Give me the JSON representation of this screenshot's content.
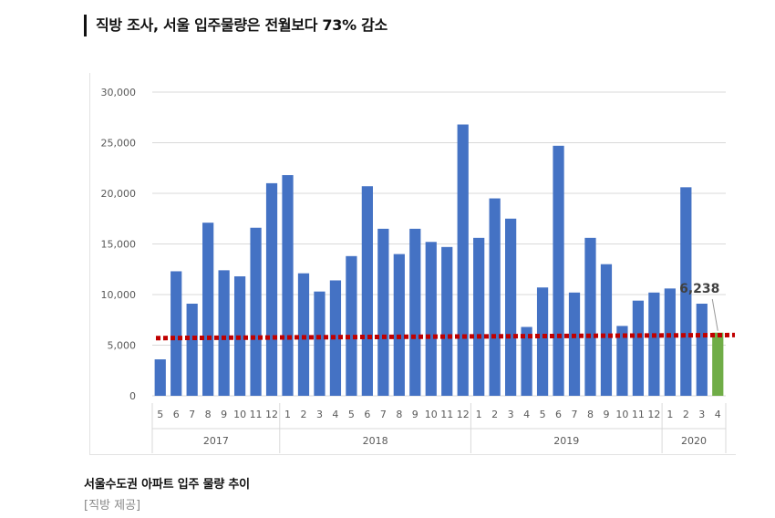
{
  "headline": "직방 조사, 서울 입주물량은 전월보다 73% 감소",
  "caption": "서울수도권 아파트 입주 물량 추이",
  "source": "[직방 제공]",
  "colors": {
    "bar": "#4472C4",
    "highlight_bar": "#70AD47",
    "average_line": "#C00000",
    "grid": "#d9d9d9",
    "axis_text": "#595959"
  },
  "chart_data": {
    "type": "bar",
    "title": "",
    "xlabel": "",
    "ylabel": "",
    "ylim": [
      0,
      30000
    ],
    "yticks": [
      {
        "value": 0,
        "label": "0"
      },
      {
        "value": 5000,
        "label": "5,000"
      },
      {
        "value": 10000,
        "label": "10,000"
      },
      {
        "value": 15000,
        "label": "15,000"
      },
      {
        "value": 20000,
        "label": "20,000"
      },
      {
        "value": 25000,
        "label": "25,000"
      },
      {
        "value": 30000,
        "label": "30,000"
      }
    ],
    "grid": true,
    "categories": [
      "5",
      "6",
      "7",
      "8",
      "9",
      "10",
      "11",
      "12",
      "1",
      "2",
      "3",
      "4",
      "5",
      "6",
      "7",
      "8",
      "9",
      "10",
      "11",
      "12",
      "1",
      "2",
      "3",
      "4",
      "5",
      "6",
      "7",
      "8",
      "9",
      "10",
      "11",
      "12",
      "1",
      "2",
      "3",
      "4"
    ],
    "groups": [
      {
        "label": "2017",
        "count": 8
      },
      {
        "label": "2018",
        "count": 12
      },
      {
        "label": "2019",
        "count": 12
      },
      {
        "label": "2020",
        "count": 4
      }
    ],
    "values": [
      3600,
      12300,
      9100,
      17100,
      12400,
      11800,
      16600,
      21000,
      21800,
      12100,
      10300,
      11400,
      13800,
      20700,
      16500,
      14000,
      16500,
      15200,
      14700,
      26800,
      15600,
      19500,
      17500,
      6800,
      10700,
      24700,
      10200,
      15600,
      13000,
      6900,
      9400,
      10200,
      10600,
      20600,
      9100,
      6238
    ],
    "highlight_index": 35,
    "highlight_label": "6,238",
    "average_line": {
      "start": 5700,
      "end": 6000
    }
  }
}
